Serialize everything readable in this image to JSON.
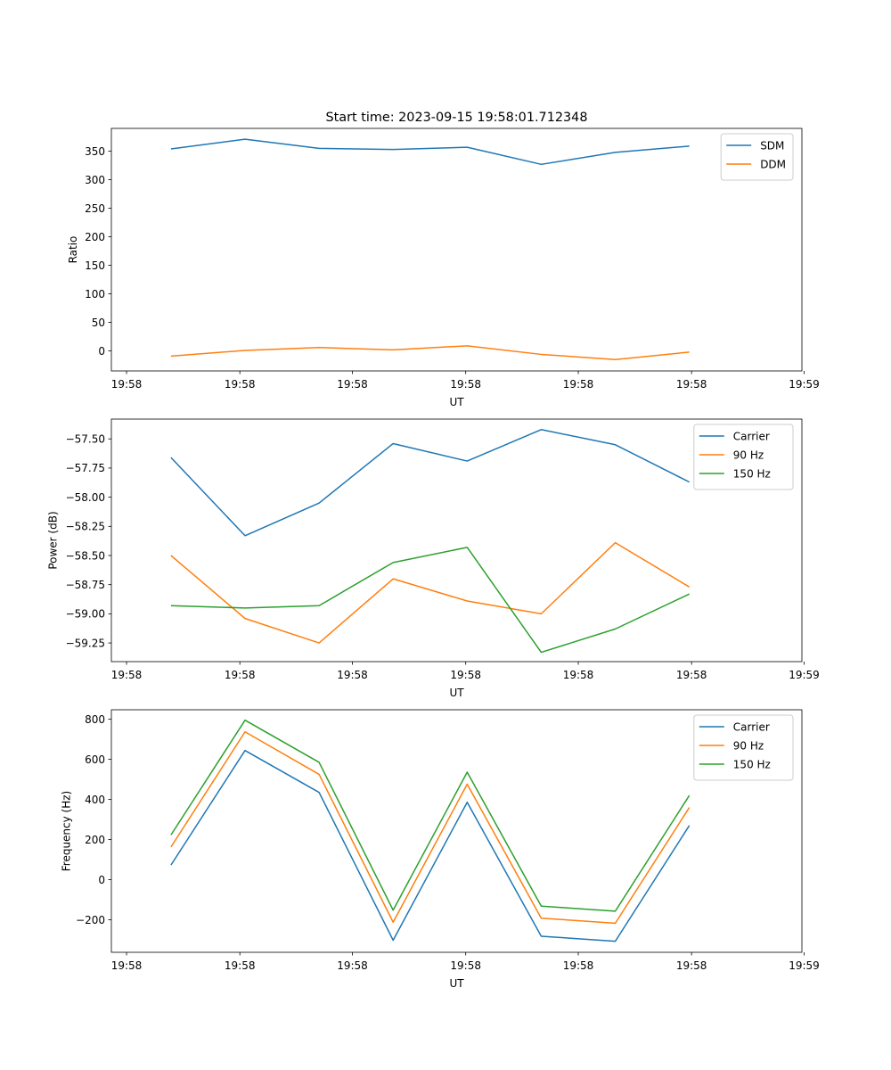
{
  "figure_title": "Start time: 2023-09-15 19:58:01.712348",
  "colors": {
    "blue": "#1f77b4",
    "orange": "#ff7f0e",
    "green": "#2ca02c"
  },
  "chart_data": [
    {
      "type": "line",
      "title": "Start time: 2023-09-15 19:58:01.712348",
      "xlabel": "UT",
      "ylabel": "Ratio",
      "x": [
        1,
        2,
        3,
        4,
        5,
        6,
        7,
        8
      ],
      "xlim": [
        0.195,
        9.52
      ],
      "xticks": [
        0.4,
        1.93,
        3.45,
        4.98,
        6.5,
        8.03,
        9.55
      ],
      "xtick_labels": [
        "19:58",
        "19:58",
        "19:58",
        "19:58",
        "19:58",
        "19:58",
        "19:59"
      ],
      "ylim": [
        -35,
        390
      ],
      "yticks": [
        0,
        50,
        100,
        150,
        200,
        250,
        300,
        350
      ],
      "ytick_labels": [
        "0",
        "50",
        "100",
        "150",
        "200",
        "250",
        "300",
        "350"
      ],
      "legend_loc": "upper right",
      "series": [
        {
          "name": "SDM",
          "color": "#1f77b4",
          "values": [
            354,
            371,
            355,
            353,
            357,
            327,
            348,
            359
          ]
        },
        {
          "name": "DDM",
          "color": "#ff7f0e",
          "values": [
            -9,
            1,
            6,
            2,
            9,
            -6,
            -15,
            -2
          ]
        }
      ]
    },
    {
      "type": "line",
      "xlabel": "UT",
      "ylabel": "Power (dB)",
      "x": [
        1,
        2,
        3,
        4,
        5,
        6,
        7,
        8
      ],
      "xlim": [
        0.195,
        9.52
      ],
      "xticks": [
        0.4,
        1.93,
        3.45,
        4.98,
        6.5,
        8.03,
        9.55
      ],
      "xtick_labels": [
        "19:58",
        "19:58",
        "19:58",
        "19:58",
        "19:58",
        "19:58",
        "19:59"
      ],
      "ylim": [
        -59.41,
        -57.33
      ],
      "yticks": [
        -59.25,
        -59.0,
        -58.75,
        -58.5,
        -58.25,
        -58.0,
        -57.75,
        -57.5
      ],
      "ytick_labels": [
        "−59.25",
        "−59.00",
        "−58.75",
        "−58.50",
        "−58.25",
        "−58.00",
        "−57.75",
        "−57.50"
      ],
      "legend_loc": "upper right",
      "series": [
        {
          "name": "Carrier",
          "color": "#1f77b4",
          "values": [
            -57.66,
            -58.33,
            -58.05,
            -57.54,
            -57.69,
            -57.42,
            -57.55,
            -57.87
          ]
        },
        {
          "name": "90 Hz",
          "color": "#ff7f0e",
          "values": [
            -58.5,
            -59.04,
            -59.25,
            -58.7,
            -58.89,
            -59.0,
            -58.39,
            -58.77
          ]
        },
        {
          "name": "150 Hz",
          "color": "#2ca02c",
          "values": [
            -58.93,
            -58.95,
            -58.93,
            -58.56,
            -58.43,
            -59.33,
            -59.13,
            -58.83
          ]
        }
      ]
    },
    {
      "type": "line",
      "xlabel": "UT",
      "ylabel": "Frequency (Hz)",
      "x": [
        1,
        2,
        3,
        4,
        5,
        6,
        7,
        8
      ],
      "xlim": [
        0.195,
        9.52
      ],
      "xticks": [
        0.4,
        1.93,
        3.45,
        4.98,
        6.5,
        8.03,
        9.55
      ],
      "xtick_labels": [
        "19:58",
        "19:58",
        "19:58",
        "19:58",
        "19:58",
        "19:58",
        "19:59"
      ],
      "ylim": [
        -362,
        847
      ],
      "yticks": [
        -200,
        0,
        200,
        400,
        600,
        800
      ],
      "ytick_labels": [
        "−200",
        "0",
        "200",
        "400",
        "600",
        "800"
      ],
      "legend_loc": "upper right",
      "series": [
        {
          "name": "Carrier",
          "color": "#1f77b4",
          "values": [
            73,
            644,
            435,
            -302,
            386,
            -282,
            -307,
            270
          ]
        },
        {
          "name": "90 Hz",
          "color": "#ff7f0e",
          "values": [
            163,
            737,
            525,
            -212,
            476,
            -192,
            -217,
            360
          ]
        },
        {
          "name": "150 Hz",
          "color": "#2ca02c",
          "values": [
            223,
            795,
            585,
            -152,
            536,
            -132,
            -157,
            420
          ]
        }
      ]
    }
  ]
}
